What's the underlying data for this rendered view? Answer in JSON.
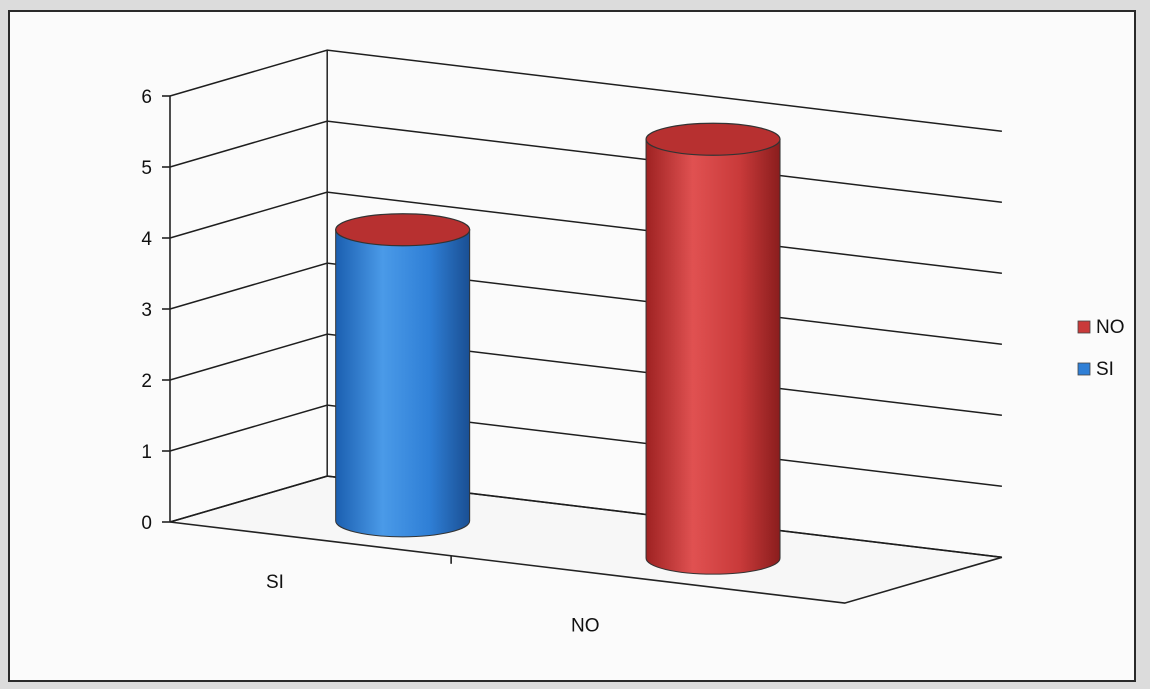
{
  "chart_data": {
    "type": "bar",
    "style": "3d-cylinder",
    "categories": [
      "SI",
      "NO"
    ],
    "values": [
      4.1,
      5.9
    ],
    "colors": [
      "#2f7fd6",
      "#c93a3a"
    ],
    "ylim": [
      0,
      6
    ],
    "yticks": [
      "0",
      "1",
      "2",
      "3",
      "4",
      "5",
      "6"
    ],
    "grid": true,
    "legend": {
      "position": "right",
      "entries": [
        {
          "label": "NO",
          "color": "#c93a3a"
        },
        {
          "label": "SI",
          "color": "#2f7fd6"
        }
      ]
    }
  }
}
